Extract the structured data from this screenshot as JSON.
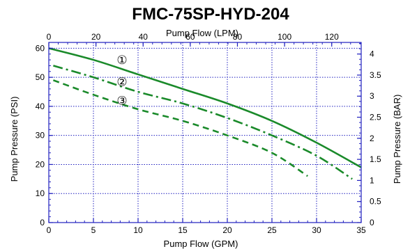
{
  "chart_data": {
    "type": "line",
    "title": "FMC-75SP-HYD-204",
    "xlabel": "Pump Flow (GPM)",
    "ylabel": "Pump Pressure (PSI)",
    "x2label": "Pump Flow (LPM)",
    "y2label": "Pump Pressure (BAR)",
    "xlim": [
      0,
      35
    ],
    "ylim": [
      0,
      62
    ],
    "x2lim": [
      0,
      132.5
    ],
    "y2lim": [
      0,
      4.275
    ],
    "grid": true,
    "x_ticks": [
      0,
      5,
      10,
      15,
      20,
      25,
      30,
      35
    ],
    "y_ticks": [
      0,
      10,
      20,
      30,
      40,
      50,
      60
    ],
    "x2_ticks": [
      0,
      20,
      40,
      60,
      80,
      100,
      120
    ],
    "y2_ticks": [
      0,
      0.5,
      1,
      1.5,
      2,
      2.5,
      3,
      3.5,
      4
    ],
    "x_tick_labels": [
      "0",
      "5",
      "10",
      "15",
      "20",
      "25",
      "30",
      "35"
    ],
    "y_tick_labels": [
      "0",
      "10",
      "20",
      "30",
      "40",
      "50",
      "60"
    ],
    "x2_tick_labels": [
      "0",
      "20",
      "40",
      "60",
      "80",
      "100",
      "120"
    ],
    "y2_tick_labels": [
      "0",
      "0.5",
      "1",
      "1.5",
      "2",
      "2.5",
      "3",
      "3.5",
      "4"
    ],
    "series": [
      {
        "marker": "①",
        "style": "solid",
        "color": "#1a8a2a",
        "x": [
          0,
          5,
          10,
          15,
          20,
          25,
          30,
          35
        ],
        "y": [
          60,
          56,
          51,
          46,
          41,
          35,
          27.5,
          19
        ]
      },
      {
        "marker": "②",
        "style": "dashdot",
        "color": "#1a8a2a",
        "x": [
          0.5,
          5,
          10,
          15,
          20,
          25,
          30,
          34
        ],
        "y": [
          54,
          50,
          45,
          41,
          36,
          30,
          23,
          15
        ]
      },
      {
        "marker": "③",
        "style": "dashed",
        "color": "#1a8a2a",
        "x": [
          0.5,
          5,
          10,
          15,
          20,
          25,
          29
        ],
        "y": [
          49,
          44,
          39,
          35,
          30,
          24,
          16
        ]
      }
    ],
    "annotations": [
      {
        "text": "①",
        "x": 8.2,
        "y": 56
      },
      {
        "text": "②",
        "x": 8.2,
        "y": 48.5
      },
      {
        "text": "③",
        "x": 8.2,
        "y": 42
      }
    ],
    "colors": {
      "line": "#1a8a2a",
      "frame": "#1f1fbf",
      "grid": "#1f1fbf"
    }
  }
}
